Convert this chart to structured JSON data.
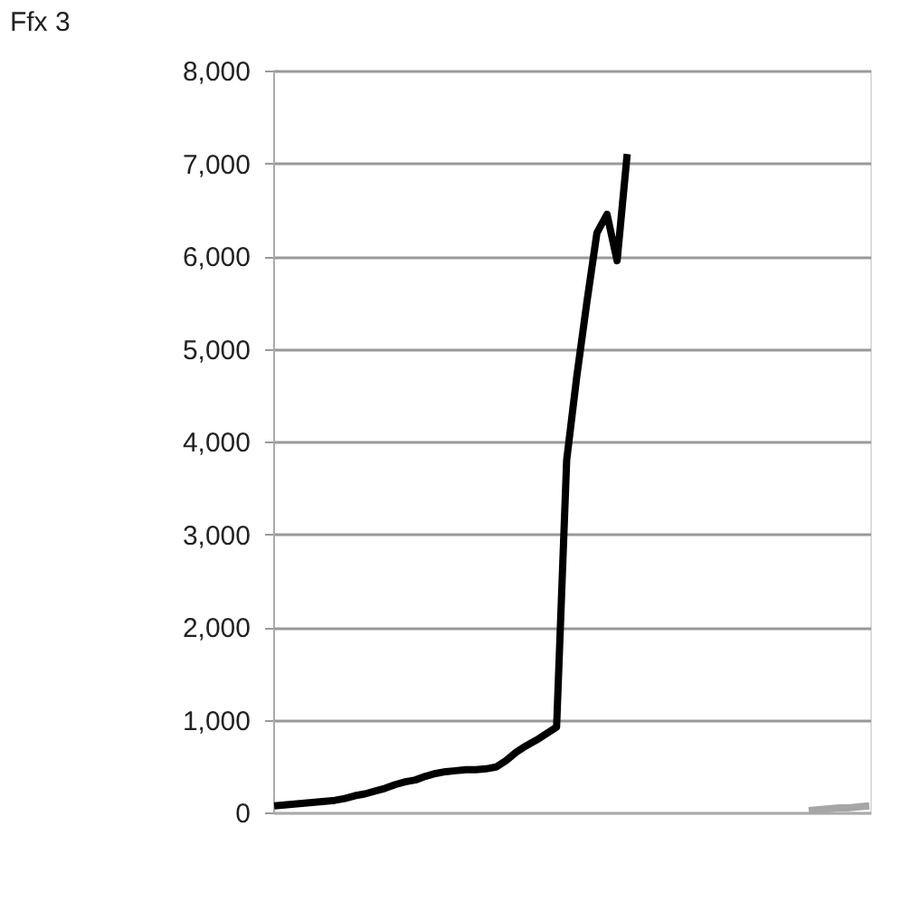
{
  "chart_data": {
    "type": "line",
    "title": "Ffx 3",
    "categories": [
      null,
      null,
      null,
      null,
      null,
      null,
      null,
      null,
      null,
      null,
      null,
      null,
      null,
      null,
      null,
      null,
      null,
      null,
      null,
      null,
      null,
      null,
      null,
      null,
      null,
      null,
      null,
      null,
      null,
      null,
      null,
      null,
      null,
      null,
      null,
      null,
      null,
      null,
      null,
      null,
      null,
      null,
      null,
      null,
      null,
      null,
      null,
      null,
      null,
      null,
      null,
      null,
      null,
      null,
      null,
      null,
      null,
      null,
      null,
      null
    ],
    "series": [
      {
        "color": "#000000",
        "values": [
          70,
          80,
          90,
          100,
          110,
          120,
          130,
          150,
          180,
          200,
          230,
          260,
          300,
          330,
          350,
          390,
          420,
          440,
          450,
          460,
          460,
          470,
          490,
          560,
          650,
          720,
          780,
          850,
          920,
          3800,
          4700,
          5500,
          6250,
          6450,
          5950,
          7100,
          null,
          null,
          null,
          null,
          null,
          null,
          null,
          null,
          null,
          null,
          null,
          null,
          null,
          null,
          null,
          null,
          null,
          null,
          null,
          null,
          null,
          null,
          null,
          null
        ]
      },
      {
        "color": "#a6a6a6",
        "values": [
          null,
          null,
          null,
          null,
          null,
          null,
          null,
          null,
          null,
          null,
          null,
          null,
          null,
          null,
          null,
          null,
          null,
          null,
          null,
          null,
          null,
          null,
          null,
          null,
          null,
          null,
          null,
          null,
          null,
          null,
          null,
          null,
          null,
          null,
          null,
          null,
          null,
          null,
          null,
          null,
          null,
          null,
          null,
          null,
          null,
          null,
          null,
          null,
          null,
          null,
          null,
          null,
          null,
          20,
          30,
          40,
          50,
          50,
          60,
          70
        ]
      }
    ],
    "ylim": [
      0,
      8000
    ],
    "yticks": [
      0,
      {
        "value": 1000,
        "label": "1,000"
      },
      {
        "value": 2000,
        "label": "2,000"
      },
      {
        "value": 3000,
        "label": "3,000"
      },
      {
        "value": 4000,
        "label": "4,000"
      },
      {
        "value": 5000,
        "label": "5,000"
      },
      {
        "value": 6000,
        "label": "6,000"
      },
      {
        "value": 7000,
        "label": "7,000"
      },
      {
        "value": 8000,
        "label": "8,000"
      }
    ],
    "grid": "y",
    "legend": false,
    "line_style": "solid",
    "marker": "none"
  }
}
